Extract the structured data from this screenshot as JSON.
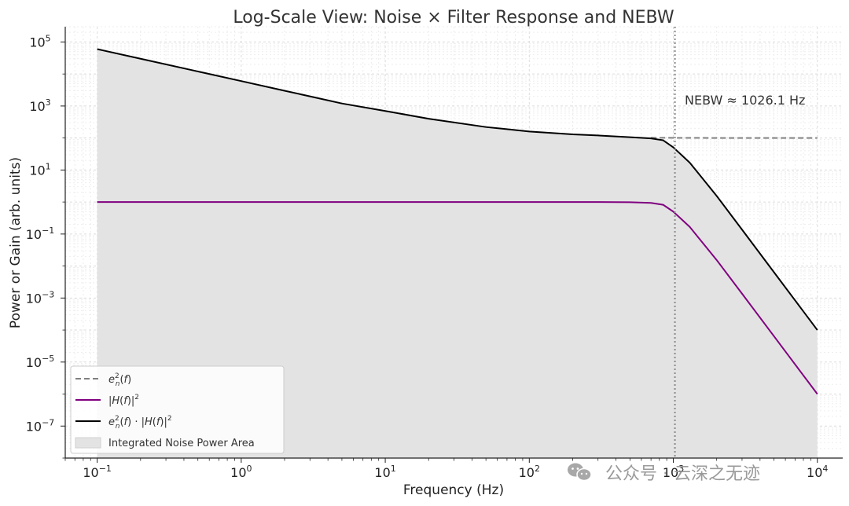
{
  "chart_data": {
    "type": "line",
    "title": "Log-Scale View: Noise × Filter Response and NEBW",
    "xlabel": "Frequency (Hz)",
    "ylabel": "Power or Gain (arb. units)",
    "xscale": "log",
    "yscale": "log",
    "xlim": [
      0.06,
      15000
    ],
    "ylim": [
      1e-08,
      300000
    ],
    "x_ticks": [
      {
        "value": 0.1,
        "base": "10",
        "exp": "−1"
      },
      {
        "value": 1,
        "base": "10",
        "exp": "0"
      },
      {
        "value": 10,
        "base": "10",
        "exp": "1"
      },
      {
        "value": 100,
        "base": "10",
        "exp": "2"
      },
      {
        "value": 1000,
        "base": "10",
        "exp": "3"
      },
      {
        "value": 10000,
        "base": "10",
        "exp": "4"
      }
    ],
    "y_ticks": [
      {
        "value": 1e-07,
        "base": "10",
        "exp": "−7"
      },
      {
        "value": 1e-05,
        "base": "10",
        "exp": "−5"
      },
      {
        "value": 0.001,
        "base": "10",
        "exp": "−3"
      },
      {
        "value": 0.1,
        "base": "10",
        "exp": "−1"
      },
      {
        "value": 10,
        "base": "10",
        "exp": "1"
      },
      {
        "value": 1000,
        "base": "10",
        "exp": "3"
      },
      {
        "value": 100000,
        "base": "10",
        "exp": "5"
      }
    ],
    "grid": true,
    "series": [
      {
        "name": "e_n^2(f)",
        "style": "dashed",
        "color": "#808080",
        "x": [
          700,
          1000,
          2000,
          5000,
          10000
        ],
        "y": [
          102,
          101,
          100.3,
          100.05,
          100.01
        ]
      },
      {
        "name": "|H(f)|^2",
        "style": "solid",
        "color": "#800080",
        "x": [
          0.1,
          1,
          10,
          100,
          300,
          500,
          700,
          850,
          1000,
          1300,
          2000,
          3000,
          5000,
          7000,
          10000
        ],
        "y": [
          1,
          1,
          1,
          1,
          1,
          0.985,
          0.94,
          0.82,
          0.5,
          0.167,
          0.0154,
          0.00137,
          6.41e-05,
          8.5e-06,
          1e-06
        ]
      },
      {
        "name": "e_n^2(f)·|H(f)|^2",
        "style": "solid",
        "color": "#000000",
        "x": [
          0.1,
          0.2,
          0.5,
          1,
          2,
          5,
          10,
          20,
          50,
          100,
          200,
          300,
          500,
          700,
          850,
          1000,
          1300,
          2000,
          3000,
          5000,
          7000,
          10000
        ],
        "y": [
          60000,
          30000,
          12000,
          6000,
          3000,
          1200,
          700,
          400,
          220,
          160,
          130,
          120,
          106,
          97,
          85,
          51,
          17,
          1.55,
          0.137,
          0.0064,
          0.00085,
          0.0001
        ]
      }
    ],
    "fill": {
      "name": "Integrated Noise Power Area",
      "color": "#e3e3e3",
      "under_series": 2
    },
    "vline": {
      "x": 1026.1,
      "style": "dotted",
      "color": "#8a8a8a"
    },
    "annotation": {
      "text": "NEBW ≈ 1026.1 Hz",
      "x": 1200,
      "y": 1000
    },
    "legend": {
      "position": "lower-left",
      "entries": [
        {
          "label": "e_n^2(f)",
          "kind": "dashed",
          "color": "#808080"
        },
        {
          "label": "|H(f)|^2",
          "kind": "line",
          "color": "#800080"
        },
        {
          "label": "e_n^2(f)·|H(f)|^2",
          "kind": "line",
          "color": "#000000"
        },
        {
          "label": "Integrated Noise Power Area",
          "kind": "patch",
          "color": "#e3e3e3"
        }
      ]
    }
  },
  "watermark": {
    "text": "公众号 · 云深之无迹",
    "icon": "wechat-icon"
  }
}
